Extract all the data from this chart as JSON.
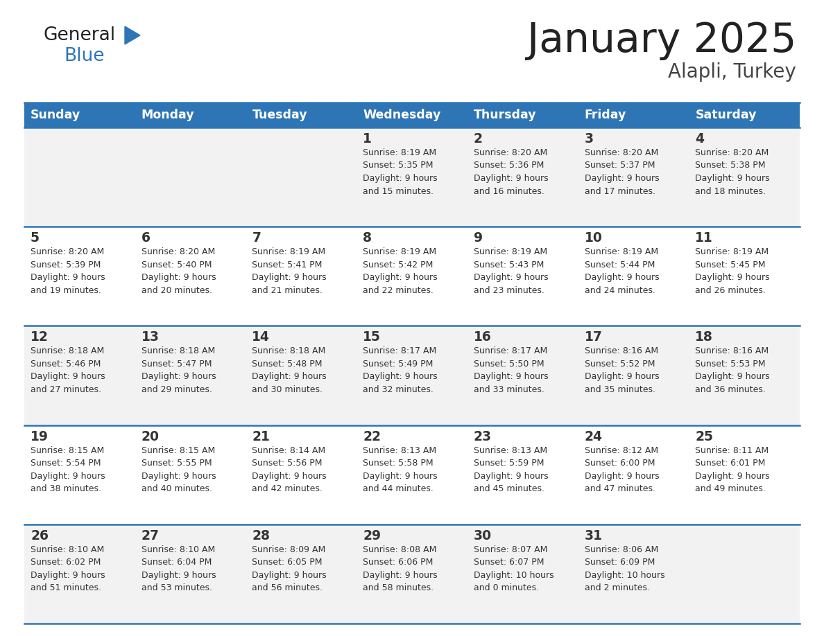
{
  "title": "January 2025",
  "subtitle": "Alapli, Turkey",
  "header_color": "#2E75B6",
  "header_text_color": "#FFFFFF",
  "cell_bg_even": "#F2F2F2",
  "cell_bg_odd": "#FFFFFF",
  "text_color": "#333333",
  "days_of_week": [
    "Sunday",
    "Monday",
    "Tuesday",
    "Wednesday",
    "Thursday",
    "Friday",
    "Saturday"
  ],
  "calendar": [
    [
      {
        "day": "",
        "info": ""
      },
      {
        "day": "",
        "info": ""
      },
      {
        "day": "",
        "info": ""
      },
      {
        "day": "1",
        "info": "Sunrise: 8:19 AM\nSunset: 5:35 PM\nDaylight: 9 hours\nand 15 minutes."
      },
      {
        "day": "2",
        "info": "Sunrise: 8:20 AM\nSunset: 5:36 PM\nDaylight: 9 hours\nand 16 minutes."
      },
      {
        "day": "3",
        "info": "Sunrise: 8:20 AM\nSunset: 5:37 PM\nDaylight: 9 hours\nand 17 minutes."
      },
      {
        "day": "4",
        "info": "Sunrise: 8:20 AM\nSunset: 5:38 PM\nDaylight: 9 hours\nand 18 minutes."
      }
    ],
    [
      {
        "day": "5",
        "info": "Sunrise: 8:20 AM\nSunset: 5:39 PM\nDaylight: 9 hours\nand 19 minutes."
      },
      {
        "day": "6",
        "info": "Sunrise: 8:20 AM\nSunset: 5:40 PM\nDaylight: 9 hours\nand 20 minutes."
      },
      {
        "day": "7",
        "info": "Sunrise: 8:19 AM\nSunset: 5:41 PM\nDaylight: 9 hours\nand 21 minutes."
      },
      {
        "day": "8",
        "info": "Sunrise: 8:19 AM\nSunset: 5:42 PM\nDaylight: 9 hours\nand 22 minutes."
      },
      {
        "day": "9",
        "info": "Sunrise: 8:19 AM\nSunset: 5:43 PM\nDaylight: 9 hours\nand 23 minutes."
      },
      {
        "day": "10",
        "info": "Sunrise: 8:19 AM\nSunset: 5:44 PM\nDaylight: 9 hours\nand 24 minutes."
      },
      {
        "day": "11",
        "info": "Sunrise: 8:19 AM\nSunset: 5:45 PM\nDaylight: 9 hours\nand 26 minutes."
      }
    ],
    [
      {
        "day": "12",
        "info": "Sunrise: 8:18 AM\nSunset: 5:46 PM\nDaylight: 9 hours\nand 27 minutes."
      },
      {
        "day": "13",
        "info": "Sunrise: 8:18 AM\nSunset: 5:47 PM\nDaylight: 9 hours\nand 29 minutes."
      },
      {
        "day": "14",
        "info": "Sunrise: 8:18 AM\nSunset: 5:48 PM\nDaylight: 9 hours\nand 30 minutes."
      },
      {
        "day": "15",
        "info": "Sunrise: 8:17 AM\nSunset: 5:49 PM\nDaylight: 9 hours\nand 32 minutes."
      },
      {
        "day": "16",
        "info": "Sunrise: 8:17 AM\nSunset: 5:50 PM\nDaylight: 9 hours\nand 33 minutes."
      },
      {
        "day": "17",
        "info": "Sunrise: 8:16 AM\nSunset: 5:52 PM\nDaylight: 9 hours\nand 35 minutes."
      },
      {
        "day": "18",
        "info": "Sunrise: 8:16 AM\nSunset: 5:53 PM\nDaylight: 9 hours\nand 36 minutes."
      }
    ],
    [
      {
        "day": "19",
        "info": "Sunrise: 8:15 AM\nSunset: 5:54 PM\nDaylight: 9 hours\nand 38 minutes."
      },
      {
        "day": "20",
        "info": "Sunrise: 8:15 AM\nSunset: 5:55 PM\nDaylight: 9 hours\nand 40 minutes."
      },
      {
        "day": "21",
        "info": "Sunrise: 8:14 AM\nSunset: 5:56 PM\nDaylight: 9 hours\nand 42 minutes."
      },
      {
        "day": "22",
        "info": "Sunrise: 8:13 AM\nSunset: 5:58 PM\nDaylight: 9 hours\nand 44 minutes."
      },
      {
        "day": "23",
        "info": "Sunrise: 8:13 AM\nSunset: 5:59 PM\nDaylight: 9 hours\nand 45 minutes."
      },
      {
        "day": "24",
        "info": "Sunrise: 8:12 AM\nSunset: 6:00 PM\nDaylight: 9 hours\nand 47 minutes."
      },
      {
        "day": "25",
        "info": "Sunrise: 8:11 AM\nSunset: 6:01 PM\nDaylight: 9 hours\nand 49 minutes."
      }
    ],
    [
      {
        "day": "26",
        "info": "Sunrise: 8:10 AM\nSunset: 6:02 PM\nDaylight: 9 hours\nand 51 minutes."
      },
      {
        "day": "27",
        "info": "Sunrise: 8:10 AM\nSunset: 6:04 PM\nDaylight: 9 hours\nand 53 minutes."
      },
      {
        "day": "28",
        "info": "Sunrise: 8:09 AM\nSunset: 6:05 PM\nDaylight: 9 hours\nand 56 minutes."
      },
      {
        "day": "29",
        "info": "Sunrise: 8:08 AM\nSunset: 6:06 PM\nDaylight: 9 hours\nand 58 minutes."
      },
      {
        "day": "30",
        "info": "Sunrise: 8:07 AM\nSunset: 6:07 PM\nDaylight: 10 hours\nand 0 minutes."
      },
      {
        "day": "31",
        "info": "Sunrise: 8:06 AM\nSunset: 6:09 PM\nDaylight: 10 hours\nand 2 minutes."
      },
      {
        "day": "",
        "info": ""
      }
    ]
  ],
  "logo_general_color": "#222222",
  "logo_blue_color": "#2E75B6",
  "figsize": [
    11.88,
    9.18
  ],
  "dpi": 100
}
